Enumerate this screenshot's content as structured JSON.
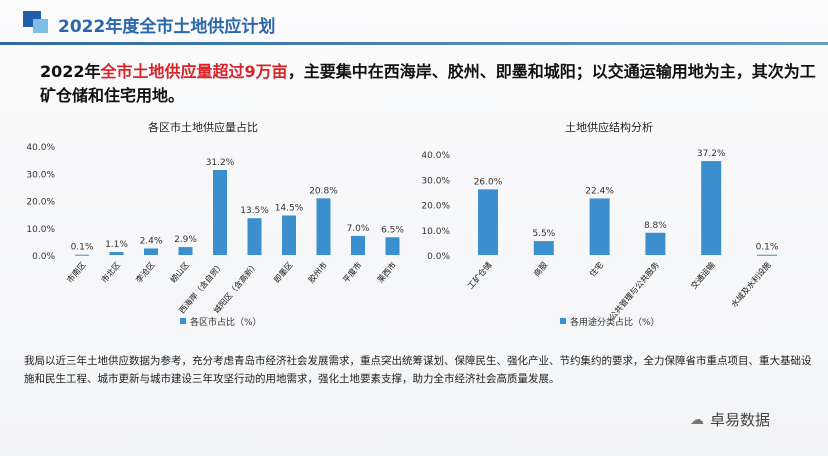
{
  "header": {
    "title": "2022年度全市土地供应计划"
  },
  "lead": {
    "part1": "2022年",
    "highlight": "全市土地供应量超过9万亩",
    "part2": "，主要集中在西海岸、胶州、即墨和城阳；以交通运输用地为主，其次为工矿仓储和住宅用地。"
  },
  "body_text": "我局以近三年土地供应数据为参考，充分考虑青岛市经济社会发展需求，重点突出统筹谋划、保障民生、强化产业、节约集约的要求，全力保障省市重点项目、重大基础设施和民生工程、城市更新与城市建设三年攻坚行动的用地需求，强化土地要素支撑，助力全市经济社会高质量发展。",
  "watermark": {
    "icon": "wechat-icon",
    "text": "卓易数据"
  },
  "colors": {
    "bar": "#3a8fcc",
    "title": "#2a66a8",
    "highlight": "#d8232a"
  },
  "chart_data": [
    {
      "type": "bar",
      "title": "各区市土地供应量占比",
      "categories": [
        "市南区",
        "市北区",
        "李沧区",
        "崂山区",
        "西海岸（含自贸）",
        "城阳区（含高新）",
        "即墨区",
        "胶州市",
        "平度市",
        "莱西市"
      ],
      "series": [
        {
          "name": "各区市占比（%）",
          "values": [
            0.1,
            1.1,
            2.4,
            2.9,
            31.2,
            13.5,
            14.5,
            20.8,
            7.0,
            6.5
          ]
        }
      ],
      "data_labels": [
        "0.1%",
        "1.1%",
        "2.4%",
        "2.9%",
        "31.2%",
        "13.5%",
        "14.5%",
        "20.8%",
        "7.0%",
        "6.5%"
      ],
      "yticks": [
        "0.0%",
        "10.0%",
        "20.0%",
        "30.0%",
        "40.0%"
      ],
      "ylim": [
        0,
        40
      ],
      "legend": "bottom",
      "grid": false
    },
    {
      "type": "bar",
      "title": "土地供应结构分析",
      "categories": [
        "工矿仓储",
        "商服",
        "住宅",
        "公共管理与公共服务",
        "交通运输",
        "水域及水利设施"
      ],
      "series": [
        {
          "name": "各用途分类占比（%）",
          "values": [
            26.0,
            5.5,
            22.4,
            8.8,
            37.2,
            0.1
          ]
        }
      ],
      "data_labels": [
        "26.0%",
        "5.5%",
        "22.4%",
        "8.8%",
        "37.2%",
        "0.1%"
      ],
      "yticks": [
        "0.0%",
        "10.0%",
        "20.0%",
        "30.0%",
        "40.0%"
      ],
      "ylim": [
        0,
        40
      ],
      "legend": "bottom",
      "grid": false
    }
  ]
}
